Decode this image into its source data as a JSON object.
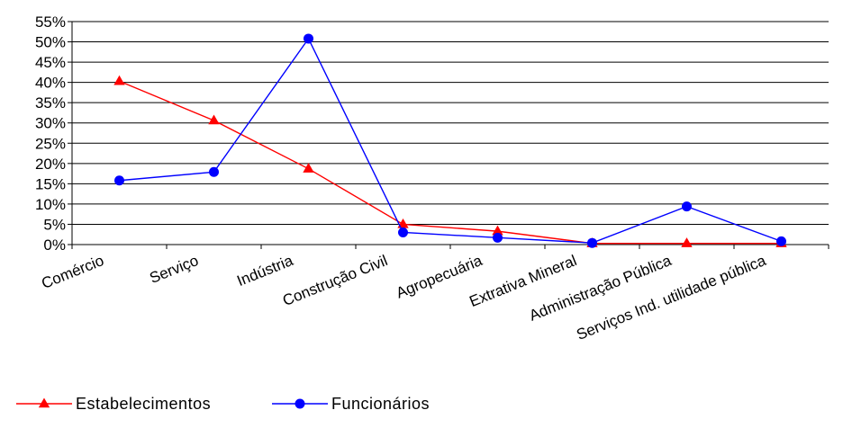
{
  "chart_data": {
    "type": "line",
    "title": "",
    "xlabel": "",
    "ylabel": "",
    "ylim": [
      0,
      55
    ],
    "ytick_step": 5,
    "y_unit_suffix": "%",
    "grid": true,
    "legend_position": "bottom-left",
    "categories": [
      "Comércio",
      "Serviço",
      "Indústria",
      "Construção Civil",
      "Agropecuária",
      "Extrativa Mineral",
      "Administração Pública",
      "Serviços Ind. utilidade pública"
    ],
    "y_ticks": [
      "0%",
      "5%",
      "10%",
      "15%",
      "20%",
      "25%",
      "30%",
      "35%",
      "40%",
      "45%",
      "50%",
      "55%"
    ],
    "series": [
      {
        "name": "Estabelecimentos",
        "color": "#ff0000",
        "marker": "triangle",
        "values": [
          40.3,
          30.6,
          18.7,
          5.0,
          3.3,
          0.3,
          0.3,
          0.3
        ]
      },
      {
        "name": "Funcionários",
        "color": "#0000ff",
        "marker": "circle",
        "values": [
          15.8,
          17.9,
          50.8,
          3.0,
          1.7,
          0.4,
          9.4,
          0.8
        ]
      }
    ]
  }
}
